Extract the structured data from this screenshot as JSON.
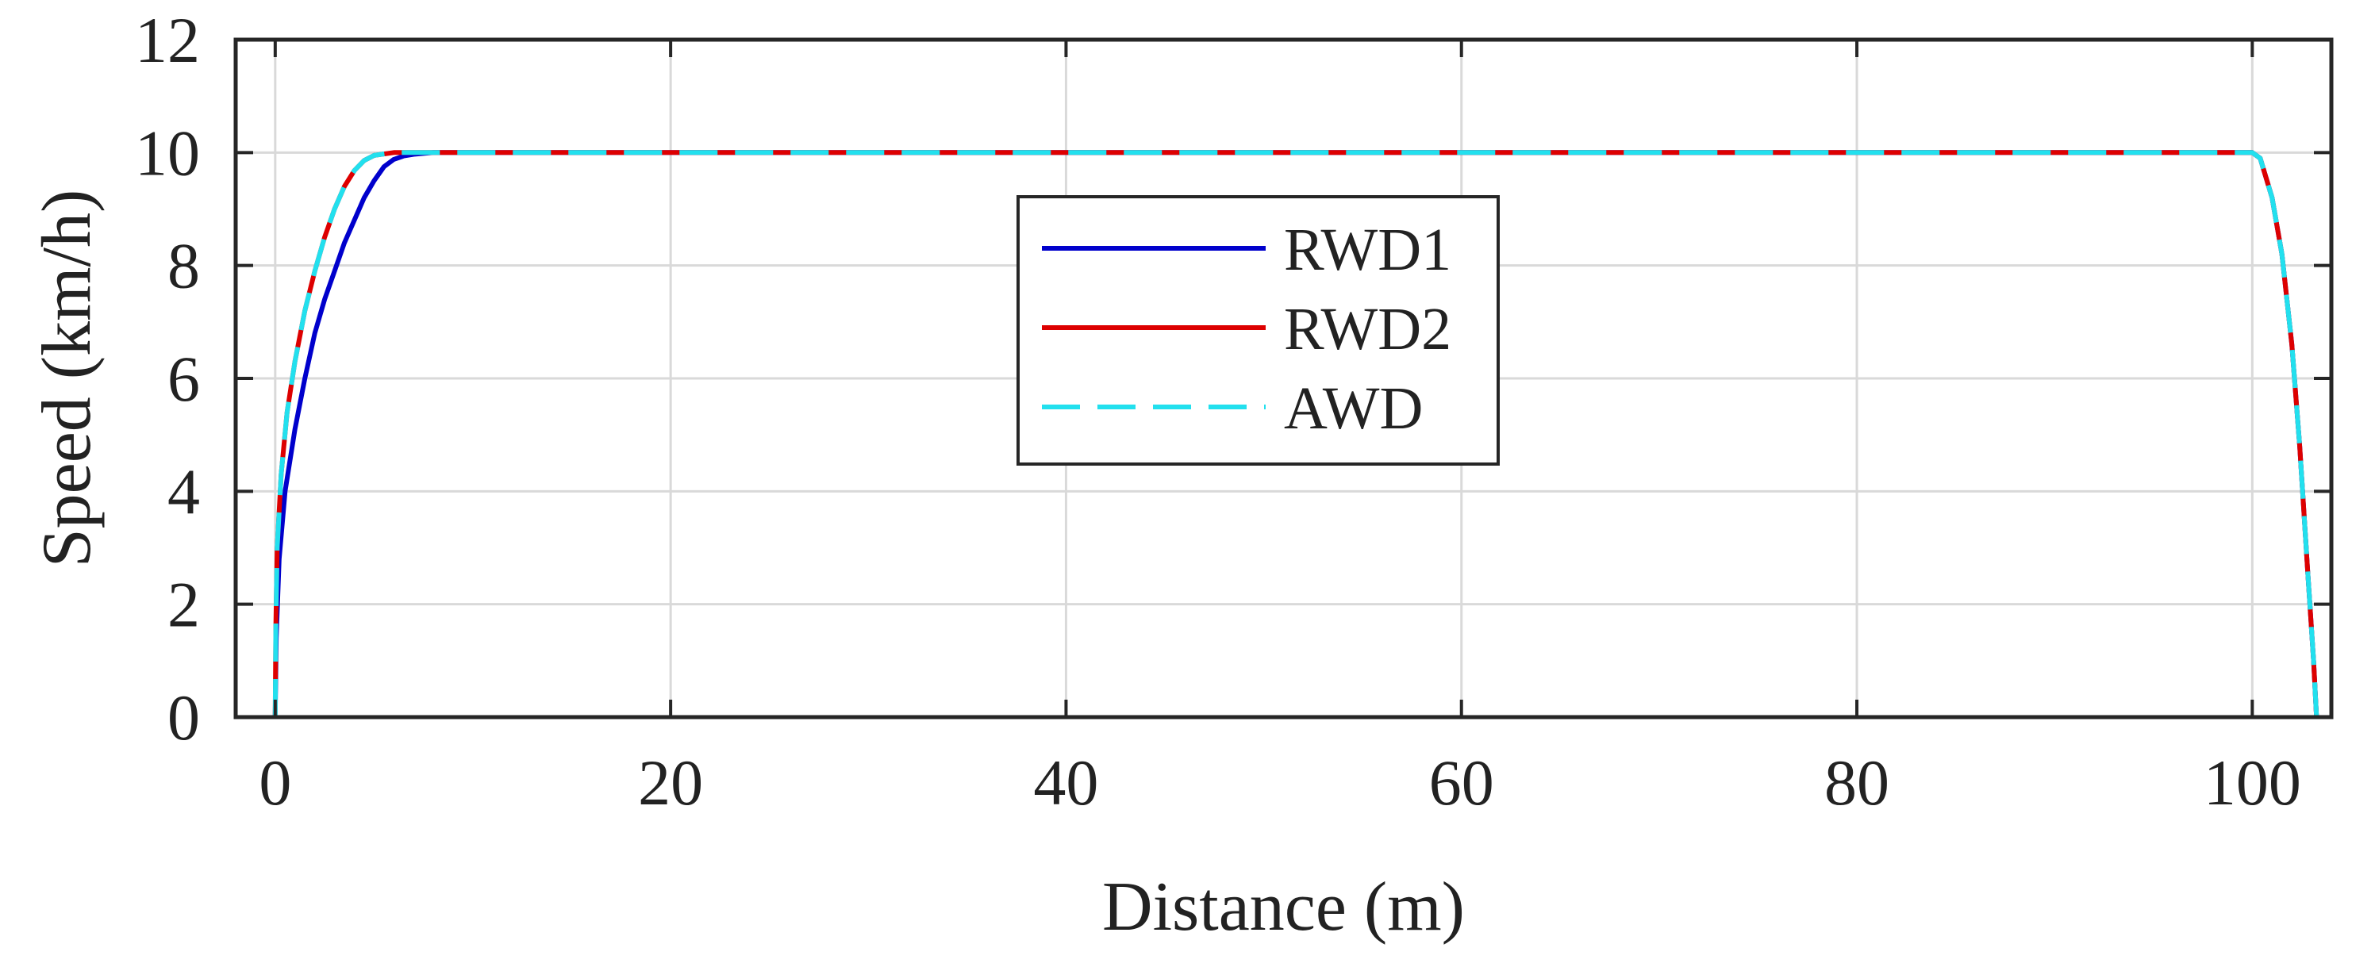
{
  "chart_data": {
    "type": "line",
    "xlabel": "Distance (m)",
    "ylabel": "Speed (km/h)",
    "xlim": [
      -2,
      104
    ],
    "ylim": [
      0,
      12
    ],
    "xticks": [
      0,
      20,
      40,
      60,
      80,
      100
    ],
    "yticks": [
      0,
      2,
      4,
      6,
      8,
      10,
      12
    ],
    "grid": true,
    "legend": {
      "placement": "upper-center"
    },
    "series": [
      {
        "name": "RWD1",
        "color": "#0000CC",
        "style": "solid",
        "points": [
          [
            0,
            0
          ],
          [
            0.05,
            1.4
          ],
          [
            0.2,
            2.8
          ],
          [
            0.5,
            4.0
          ],
          [
            1.0,
            5.1
          ],
          [
            1.5,
            6.0
          ],
          [
            2.0,
            6.8
          ],
          [
            2.5,
            7.4
          ],
          [
            3.0,
            7.9
          ],
          [
            3.5,
            8.4
          ],
          [
            4.0,
            8.8
          ],
          [
            4.5,
            9.2
          ],
          [
            5.0,
            9.5
          ],
          [
            5.5,
            9.75
          ],
          [
            6.0,
            9.88
          ],
          [
            6.5,
            9.94
          ],
          [
            7.0,
            9.97
          ],
          [
            8.0,
            10.0
          ],
          [
            100,
            10.0
          ],
          [
            100.4,
            9.9
          ],
          [
            101.0,
            9.2
          ],
          [
            101.5,
            8.2
          ],
          [
            102.0,
            6.6
          ],
          [
            102.4,
            4.8
          ],
          [
            102.8,
            2.6
          ],
          [
            103.1,
            1.0
          ],
          [
            103.25,
            0
          ]
        ]
      },
      {
        "name": "RWD2",
        "color": "#DD0000",
        "style": "solid",
        "points": [
          [
            0,
            0
          ],
          [
            0.03,
            1.6
          ],
          [
            0.1,
            3.0
          ],
          [
            0.3,
            4.3
          ],
          [
            0.6,
            5.4
          ],
          [
            1.0,
            6.3
          ],
          [
            1.5,
            7.2
          ],
          [
            2.0,
            7.9
          ],
          [
            2.5,
            8.5
          ],
          [
            3.0,
            9.0
          ],
          [
            3.5,
            9.4
          ],
          [
            4.0,
            9.68
          ],
          [
            4.5,
            9.86
          ],
          [
            5.0,
            9.95
          ],
          [
            6.0,
            10.0
          ],
          [
            100,
            10.0
          ],
          [
            100.4,
            9.9
          ],
          [
            101.0,
            9.2
          ],
          [
            101.5,
            8.2
          ],
          [
            102.0,
            6.6
          ],
          [
            102.4,
            4.8
          ],
          [
            102.8,
            2.6
          ],
          [
            103.1,
            1.0
          ],
          [
            103.25,
            0
          ]
        ]
      },
      {
        "name": "AWD",
        "color": "#22E0EE",
        "style": "dashed",
        "points": [
          [
            0,
            0
          ],
          [
            0.03,
            1.6
          ],
          [
            0.1,
            3.0
          ],
          [
            0.3,
            4.3
          ],
          [
            0.6,
            5.4
          ],
          [
            1.0,
            6.3
          ],
          [
            1.5,
            7.2
          ],
          [
            2.0,
            7.9
          ],
          [
            2.5,
            8.5
          ],
          [
            3.0,
            9.0
          ],
          [
            3.5,
            9.4
          ],
          [
            4.0,
            9.68
          ],
          [
            4.5,
            9.86
          ],
          [
            5.0,
            9.95
          ],
          [
            6.0,
            10.0
          ],
          [
            100,
            10.0
          ],
          [
            100.4,
            9.9
          ],
          [
            101.0,
            9.2
          ],
          [
            101.5,
            8.2
          ],
          [
            102.0,
            6.6
          ],
          [
            102.4,
            4.8
          ],
          [
            102.8,
            2.6
          ],
          [
            103.1,
            1.0
          ],
          [
            103.25,
            0
          ]
        ]
      }
    ]
  }
}
